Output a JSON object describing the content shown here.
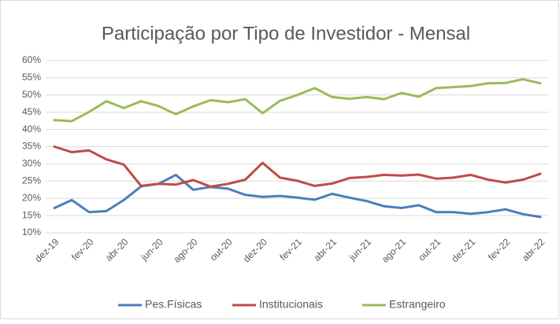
{
  "chart_data": {
    "type": "line",
    "title": "Participação por Tipo de Investidor - Mensal",
    "categories": [
      "dez-19",
      null,
      "fev-20",
      null,
      "abr-20",
      null,
      "jun-20",
      null,
      "ago-20",
      null,
      "out-20",
      null,
      "dez-20",
      null,
      "fev-21",
      null,
      "abr-21",
      null,
      "jun-21",
      null,
      "ago-21",
      null,
      "out-21",
      null,
      "dez-21",
      null,
      "fev-22",
      null,
      "abr-22"
    ],
    "series": [
      {
        "name": "Pes.Físicas",
        "color": "#4a7ebb",
        "values": [
          17.2,
          19.5,
          16.0,
          16.3,
          19.5,
          23.5,
          24.2,
          26.8,
          22.5,
          23.3,
          22.8,
          21.0,
          20.4,
          20.7,
          20.2,
          19.6,
          21.3,
          20.2,
          19.2,
          17.7,
          17.2,
          18.0,
          16.0,
          16.0,
          15.5,
          16.0,
          16.8,
          15.4,
          14.6
        ]
      },
      {
        "name": "Institucionais",
        "color": "#be4b48",
        "values": [
          35.0,
          33.4,
          33.9,
          31.3,
          29.8,
          23.6,
          24.2,
          24.0,
          25.3,
          23.4,
          24.2,
          25.4,
          30.3,
          26.0,
          25.1,
          23.6,
          24.3,
          25.9,
          26.2,
          26.8,
          26.6,
          26.9,
          25.7,
          26.0,
          26.8,
          25.4,
          24.6,
          25.4,
          27.1
        ]
      },
      {
        "name": "Estrangeiro",
        "color": "#9bbb59",
        "values": [
          42.7,
          42.4,
          45.1,
          48.2,
          46.2,
          48.2,
          46.8,
          44.4,
          46.7,
          48.5,
          47.9,
          48.8,
          44.7,
          48.3,
          50.0,
          52.0,
          49.4,
          48.9,
          49.4,
          48.8,
          50.6,
          49.5,
          52.0,
          52.3,
          52.6,
          53.4,
          53.5,
          54.6,
          53.4
        ]
      }
    ],
    "ylim": [
      10,
      60
    ],
    "yticks": [
      {
        "value": 10,
        "label": "10%"
      },
      {
        "value": 15,
        "label": "15%"
      },
      {
        "value": 20,
        "label": "20%"
      },
      {
        "value": 25,
        "label": "25%"
      },
      {
        "value": 30,
        "label": "30%"
      },
      {
        "value": 35,
        "label": "35%"
      },
      {
        "value": 40,
        "label": "40%"
      },
      {
        "value": 45,
        "label": "45%"
      },
      {
        "value": 50,
        "label": "50%"
      },
      {
        "value": 55,
        "label": "55%"
      },
      {
        "value": 60,
        "label": "60%"
      }
    ],
    "grid": true,
    "legend": "bottom"
  }
}
